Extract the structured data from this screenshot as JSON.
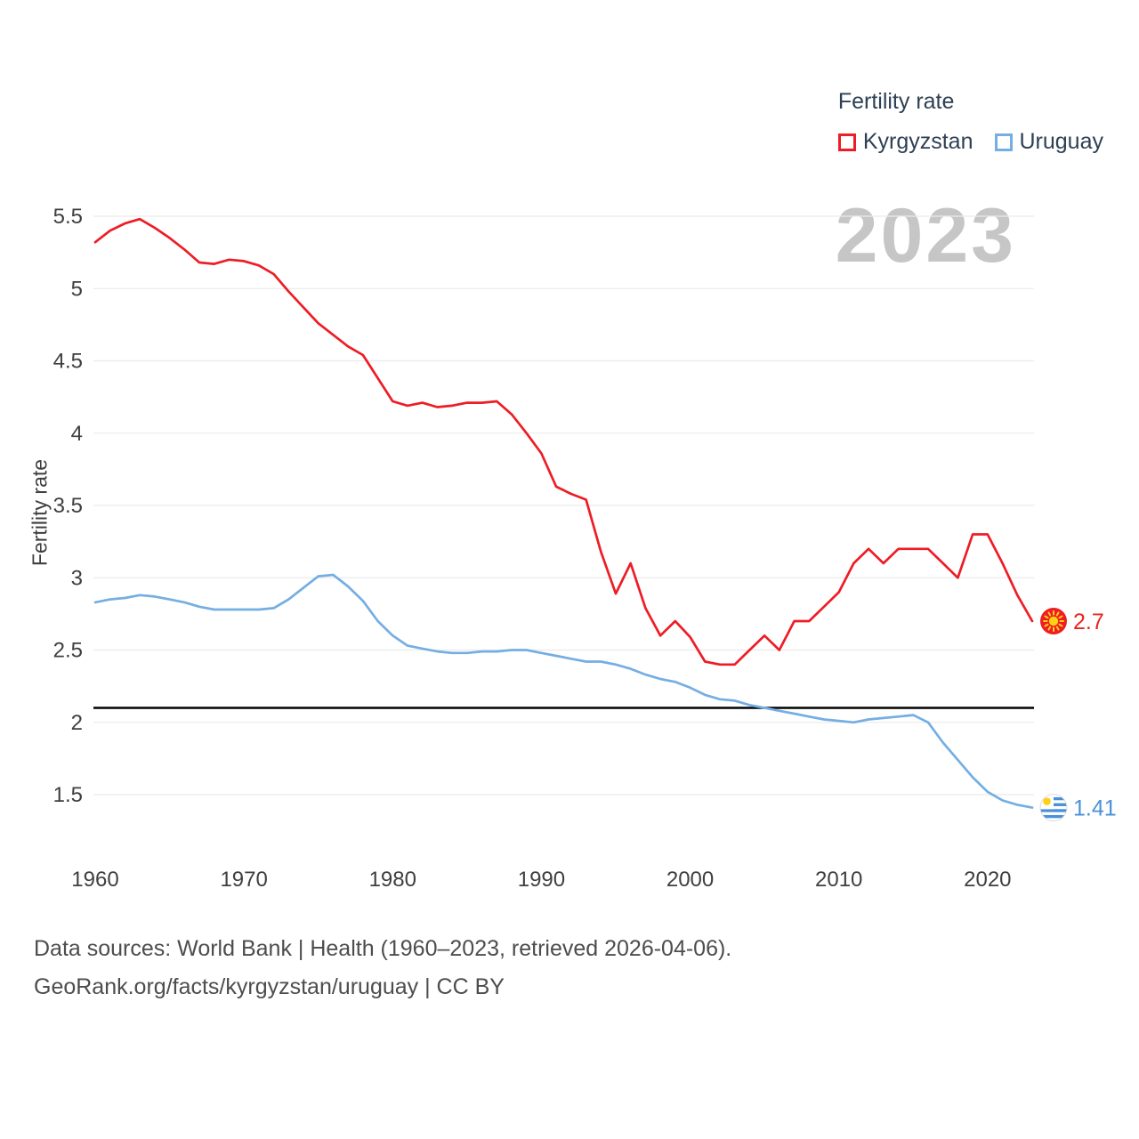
{
  "watermark": "2023",
  "legend": {
    "title": "Fertility rate"
  },
  "footer": {
    "line1": "Data sources: World Bank | Health (1960–2023, retrieved 2026-04-06).",
    "line2": "GeoRank.org/facts/kyrgyzstan/uruguay | CC BY"
  },
  "chart_data": {
    "type": "line",
    "title": "Fertility rate",
    "ylabel": "Fertility rate",
    "xlabel": "",
    "grid": true,
    "legend_position": "top-right",
    "ylim": [
      1.25,
      5.62
    ],
    "xlim": [
      1960,
      2023
    ],
    "yticks": [
      1.5,
      2,
      2.5,
      3,
      3.5,
      4,
      4.5,
      5,
      5.5
    ],
    "xticks": [
      1960,
      1970,
      1980,
      1990,
      2000,
      2010,
      2020
    ],
    "reference_line": {
      "value": 2.1,
      "color": "#000000"
    },
    "x": [
      1960,
      1961,
      1962,
      1963,
      1964,
      1965,
      1966,
      1967,
      1968,
      1969,
      1970,
      1971,
      1972,
      1973,
      1974,
      1975,
      1976,
      1977,
      1978,
      1979,
      1980,
      1981,
      1982,
      1983,
      1984,
      1985,
      1986,
      1987,
      1988,
      1989,
      1990,
      1991,
      1992,
      1993,
      1994,
      1995,
      1996,
      1997,
      1998,
      1999,
      2000,
      2001,
      2002,
      2003,
      2004,
      2005,
      2006,
      2007,
      2008,
      2009,
      2010,
      2011,
      2012,
      2013,
      2014,
      2015,
      2016,
      2017,
      2018,
      2019,
      2020,
      2021,
      2022,
      2023
    ],
    "series": [
      {
        "name": "Kyrgyzstan",
        "color": "#ee1c25",
        "values": [
          5.32,
          5.4,
          5.45,
          5.48,
          5.42,
          5.35,
          5.27,
          5.18,
          5.17,
          5.2,
          5.19,
          5.16,
          5.1,
          4.98,
          4.87,
          4.76,
          4.68,
          4.6,
          4.54,
          4.38,
          4.22,
          4.19,
          4.21,
          4.18,
          4.19,
          4.21,
          4.21,
          4.22,
          4.13,
          4.0,
          3.86,
          3.63,
          3.58,
          3.54,
          3.18,
          2.89,
          3.1,
          2.79,
          2.6,
          2.7,
          2.59,
          2.42,
          2.4,
          2.4,
          2.5,
          2.6,
          2.5,
          2.7,
          2.7,
          2.8,
          2.9,
          3.1,
          3.2,
          3.1,
          3.2,
          3.2,
          3.2,
          3.1,
          3.0,
          3.3,
          3.3,
          3.1,
          2.88,
          2.7
        ]
      },
      {
        "name": "Uruguay",
        "color": "#74aee3",
        "values": [
          2.83,
          2.85,
          2.86,
          2.88,
          2.87,
          2.85,
          2.83,
          2.8,
          2.78,
          2.78,
          2.78,
          2.78,
          2.79,
          2.85,
          2.93,
          3.01,
          3.02,
          2.94,
          2.84,
          2.7,
          2.6,
          2.53,
          2.51,
          2.49,
          2.48,
          2.48,
          2.49,
          2.49,
          2.5,
          2.5,
          2.48,
          2.46,
          2.44,
          2.42,
          2.42,
          2.4,
          2.37,
          2.33,
          2.3,
          2.28,
          2.24,
          2.19,
          2.16,
          2.15,
          2.12,
          2.1,
          2.08,
          2.06,
          2.04,
          2.02,
          2.01,
          2.0,
          2.02,
          2.03,
          2.04,
          2.05,
          2.0,
          1.86,
          1.74,
          1.62,
          1.52,
          1.46,
          1.43,
          1.41
        ]
      }
    ],
    "end_markers": [
      {
        "series": "Kyrgyzstan",
        "value": "2.7",
        "color": "#e8251f",
        "flag": "kyrgyzstan-flag"
      },
      {
        "series": "Uruguay",
        "value": "1.41",
        "color": "#4a90d9",
        "flag": "uruguay-flag"
      }
    ]
  }
}
